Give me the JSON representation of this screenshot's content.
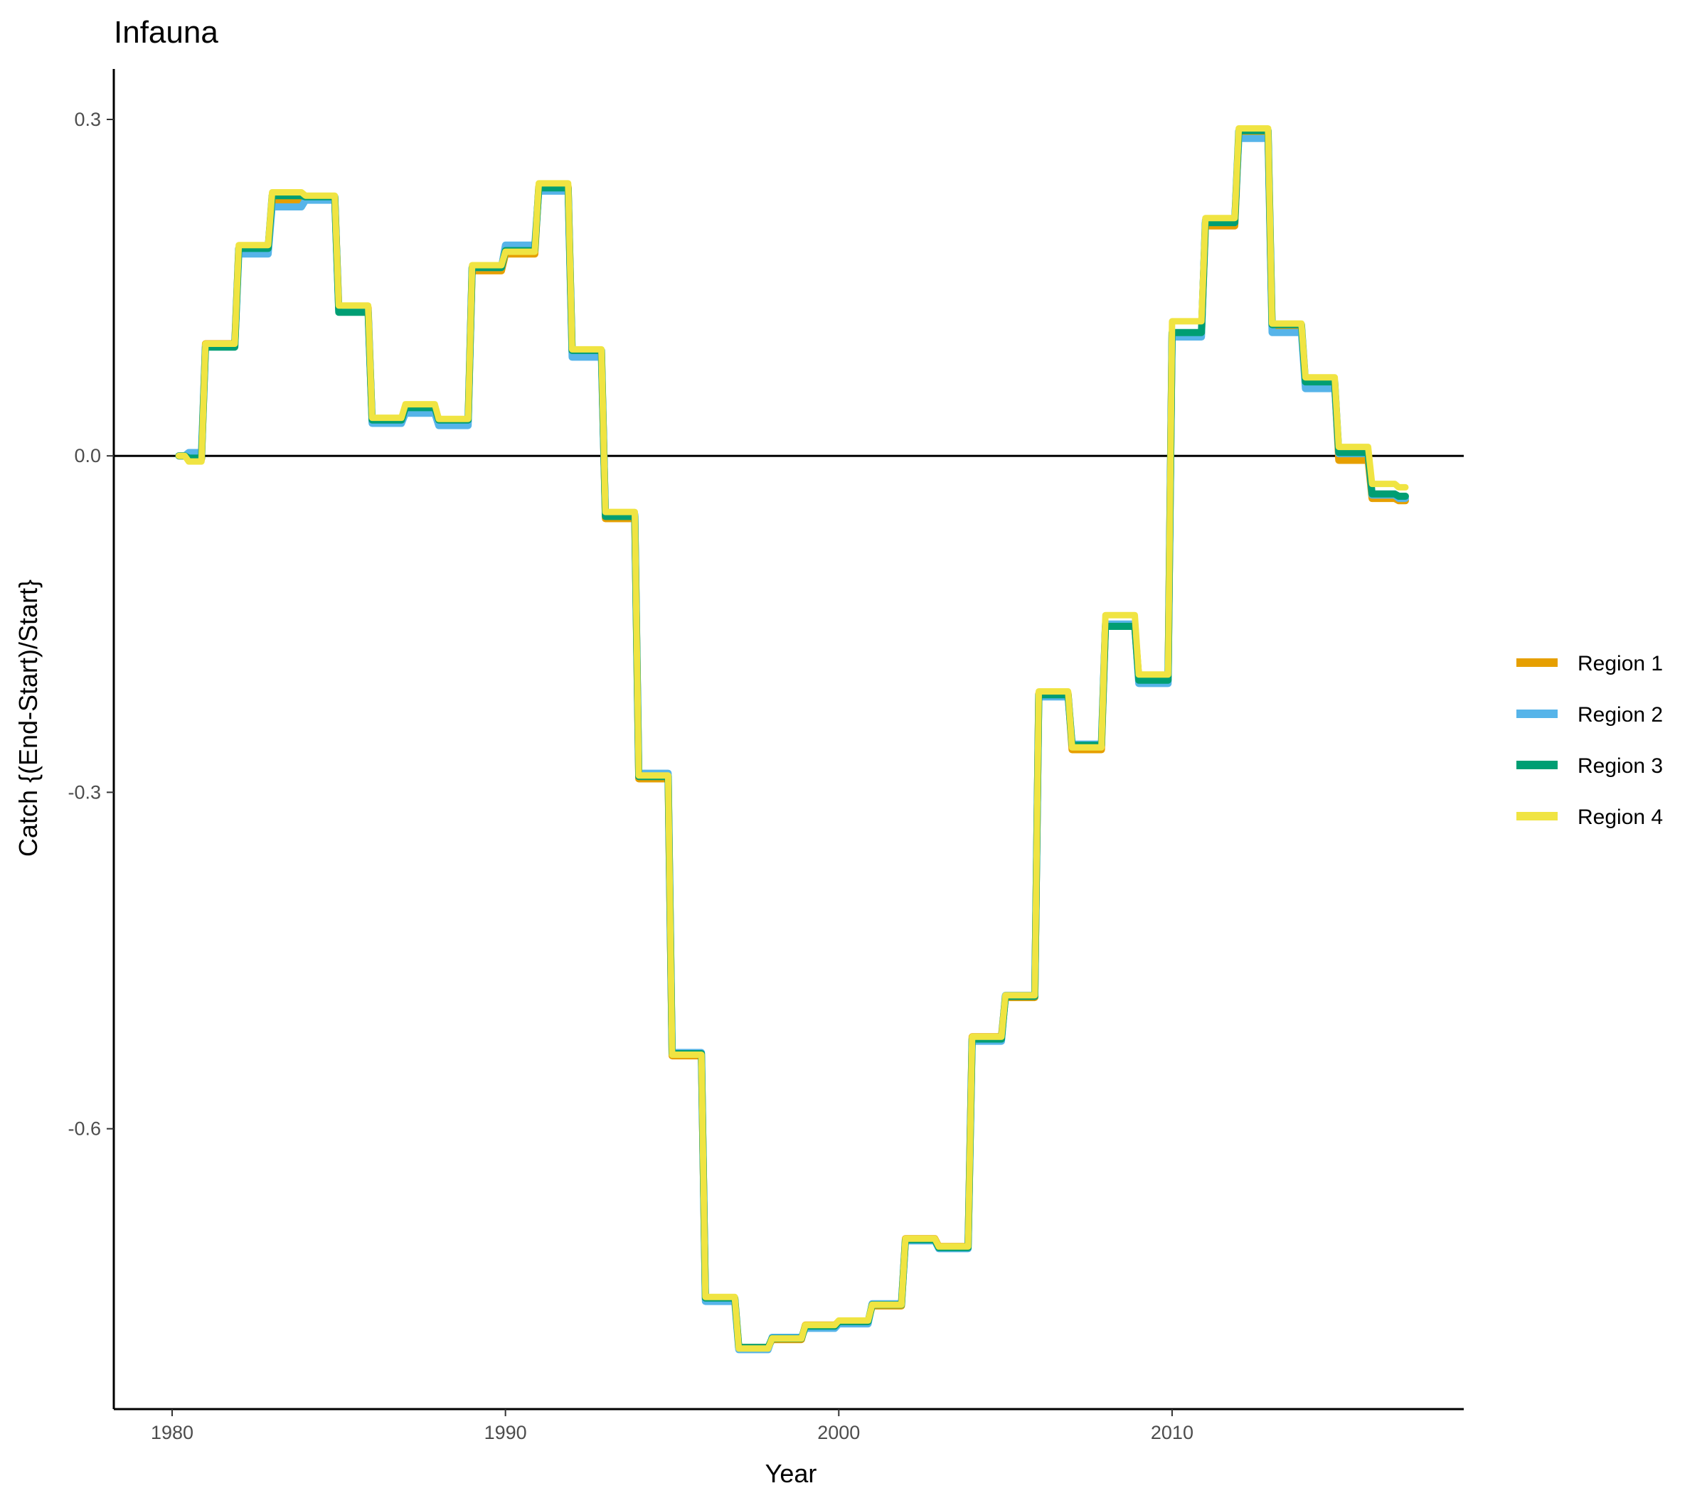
{
  "chart_data": {
    "type": "line",
    "title": "Infauna",
    "xlabel": "Year",
    "ylabel": "Catch {(End-Start)/Start}",
    "xlim": [
      1978.25,
      2018.75
    ],
    "ylim": [
      -0.85,
      0.345
    ],
    "x_ticks": [
      1980,
      1990,
      2000,
      2010
    ],
    "x_tick_labels": [
      "1980",
      "1990",
      "2000",
      "2010"
    ],
    "y_ticks": [
      0.3,
      0.0,
      -0.3,
      -0.6
    ],
    "y_tick_labels": [
      "0.3",
      "0.0",
      "-0.3",
      "-0.6"
    ],
    "hline": 0.0,
    "grid": false,
    "legend_position": "right",
    "x": [
      1980.2,
      1980.5,
      1981,
      1982,
      1983,
      1984,
      1985,
      1986,
      1987,
      1988,
      1989,
      1990,
      1991,
      1992,
      1993,
      1994,
      1995,
      1996,
      1997,
      1998,
      1999,
      2000,
      2001,
      2002,
      2003,
      2004,
      2005,
      2006,
      2007,
      2008,
      2009,
      2010,
      2011,
      2012,
      2013,
      2014,
      2015,
      2016,
      2016.8
    ],
    "series": [
      {
        "name": "Region 1",
        "color": "#E69F00",
        "values": [
          0.0,
          -0.003,
          0.1,
          0.185,
          0.228,
          0.23,
          0.132,
          0.03,
          0.042,
          0.03,
          0.165,
          0.18,
          0.24,
          0.092,
          -0.056,
          -0.288,
          -0.535,
          -0.752,
          -0.795,
          -0.788,
          -0.775,
          -0.772,
          -0.758,
          -0.698,
          -0.705,
          -0.518,
          -0.483,
          -0.212,
          -0.262,
          -0.152,
          -0.198,
          0.108,
          0.205,
          0.285,
          0.115,
          0.062,
          -0.004,
          -0.038,
          -0.04
        ]
      },
      {
        "name": "Region 2",
        "color": "#56B4E9",
        "values": [
          0.0,
          0.003,
          0.098,
          0.18,
          0.222,
          0.228,
          0.13,
          0.029,
          0.038,
          0.027,
          0.168,
          0.188,
          0.236,
          0.088,
          -0.052,
          -0.283,
          -0.532,
          -0.754,
          -0.797,
          -0.786,
          -0.778,
          -0.774,
          -0.756,
          -0.7,
          -0.707,
          -0.522,
          -0.481,
          -0.215,
          -0.257,
          -0.15,
          -0.203,
          0.106,
          0.21,
          0.283,
          0.11,
          0.06,
          0.002,
          -0.035,
          -0.038
        ]
      },
      {
        "name": "Region 3",
        "color": "#009E73",
        "values": [
          0.0,
          -0.002,
          0.097,
          0.185,
          0.232,
          0.231,
          0.128,
          0.032,
          0.043,
          0.032,
          0.168,
          0.183,
          0.239,
          0.094,
          -0.054,
          -0.286,
          -0.533,
          -0.751,
          -0.795,
          -0.787,
          -0.776,
          -0.772,
          -0.757,
          -0.699,
          -0.706,
          -0.52,
          -0.482,
          -0.213,
          -0.258,
          -0.152,
          -0.2,
          0.11,
          0.208,
          0.29,
          0.117,
          0.066,
          0.003,
          -0.034,
          -0.036
        ]
      },
      {
        "name": "Region 4",
        "color": "#F0E442",
        "values": [
          0.0,
          -0.005,
          0.1,
          0.188,
          0.235,
          0.232,
          0.134,
          0.034,
          0.046,
          0.033,
          0.17,
          0.182,
          0.243,
          0.095,
          -0.05,
          -0.285,
          -0.534,
          -0.75,
          -0.796,
          -0.787,
          -0.775,
          -0.771,
          -0.757,
          -0.698,
          -0.705,
          -0.518,
          -0.481,
          -0.21,
          -0.26,
          -0.142,
          -0.195,
          0.12,
          0.212,
          0.292,
          0.118,
          0.07,
          0.008,
          -0.025,
          -0.028
        ]
      }
    ]
  }
}
